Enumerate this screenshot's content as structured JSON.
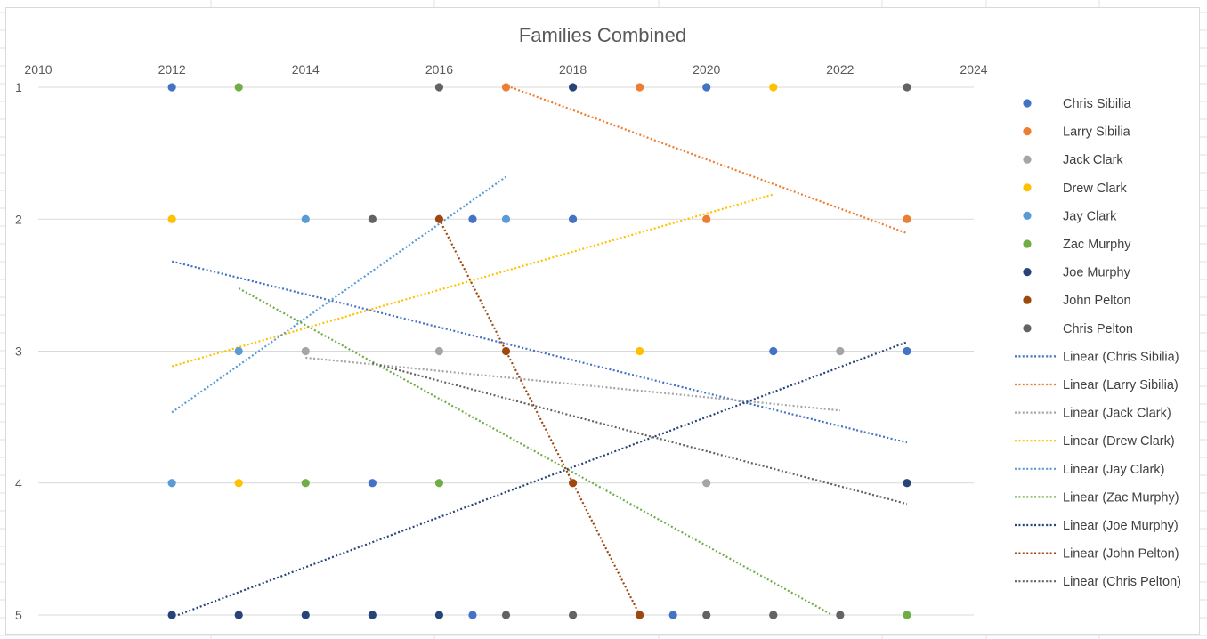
{
  "chart_data": {
    "type": "scatter",
    "title": "Families Combined",
    "xlabel": "",
    "ylabel": "",
    "xlim": [
      2010,
      2024
    ],
    "ylim": [
      1,
      5
    ],
    "y_reversed": true,
    "x_axis_position": "top",
    "x_ticks": [
      "2010",
      "2012",
      "2014",
      "2016",
      "2018",
      "2020",
      "2022",
      "2024"
    ],
    "y_ticks": [
      "1",
      "2",
      "3",
      "4",
      "5"
    ],
    "grid": "horizontal",
    "legend_position": "right",
    "series": [
      {
        "name": "Chris Sibilia",
        "color": "#4472C4",
        "trend_label": "Linear (Chris Sibilia)",
        "points": [
          [
            2012,
            1
          ],
          [
            2020,
            1
          ],
          [
            2016.5,
            2
          ],
          [
            2018,
            2
          ],
          [
            2021,
            3
          ],
          [
            2023,
            3
          ],
          [
            2015,
            4
          ],
          [
            2016.5,
            5
          ],
          [
            2019.5,
            5
          ],
          [
            2021,
            5
          ]
        ]
      },
      {
        "name": "Larry Sibilia",
        "color": "#ED7D31",
        "trend_label": "Linear (Larry Sibilia)",
        "points": [
          [
            2017,
            1
          ],
          [
            2019,
            1
          ],
          [
            2020,
            2
          ],
          [
            2023,
            2
          ]
        ]
      },
      {
        "name": "Jack Clark",
        "color": "#A5A5A5",
        "trend_label": "Linear (Jack Clark)",
        "points": [
          [
            2014,
            3
          ],
          [
            2016,
            3
          ],
          [
            2022,
            3
          ],
          [
            2020,
            4
          ]
        ]
      },
      {
        "name": "Drew Clark",
        "color": "#FFC000",
        "trend_label": "Linear (Drew Clark)",
        "points": [
          [
            2021,
            1
          ],
          [
            2012,
            2
          ],
          [
            2019,
            3
          ],
          [
            2013,
            4
          ]
        ]
      },
      {
        "name": "Jay Clark",
        "color": "#5B9BD5",
        "trend_label": "Linear (Jay Clark)",
        "points": [
          [
            2014,
            2
          ],
          [
            2017,
            2
          ],
          [
            2013,
            3
          ],
          [
            2012,
            4
          ]
        ]
      },
      {
        "name": "Zac Murphy",
        "color": "#70AD47",
        "trend_label": "Linear (Zac Murphy)",
        "points": [
          [
            2013,
            1
          ],
          [
            2014,
            4
          ],
          [
            2016,
            4
          ],
          [
            2023,
            5
          ]
        ]
      },
      {
        "name": "Joe Murphy",
        "color": "#264478",
        "trend_label": "Linear (Joe Murphy)",
        "points": [
          [
            2018,
            1
          ],
          [
            2023,
            4
          ],
          [
            2012,
            5
          ],
          [
            2013,
            5
          ],
          [
            2014,
            5
          ],
          [
            2015,
            5
          ],
          [
            2016,
            5
          ]
        ]
      },
      {
        "name": "John Pelton",
        "color": "#9E480E",
        "trend_label": "Linear (John Pelton)",
        "points": [
          [
            2016,
            2
          ],
          [
            2017,
            3
          ],
          [
            2018,
            4
          ],
          [
            2019,
            5
          ]
        ]
      },
      {
        "name": "Chris Pelton",
        "color": "#636363",
        "trend_label": "Linear (Chris Pelton)",
        "points": [
          [
            2016,
            1
          ],
          [
            2023,
            1
          ],
          [
            2015,
            2
          ],
          [
            2017,
            5
          ],
          [
            2018,
            5
          ],
          [
            2020,
            5
          ],
          [
            2021,
            5
          ],
          [
            2022,
            5
          ]
        ]
      }
    ]
  }
}
